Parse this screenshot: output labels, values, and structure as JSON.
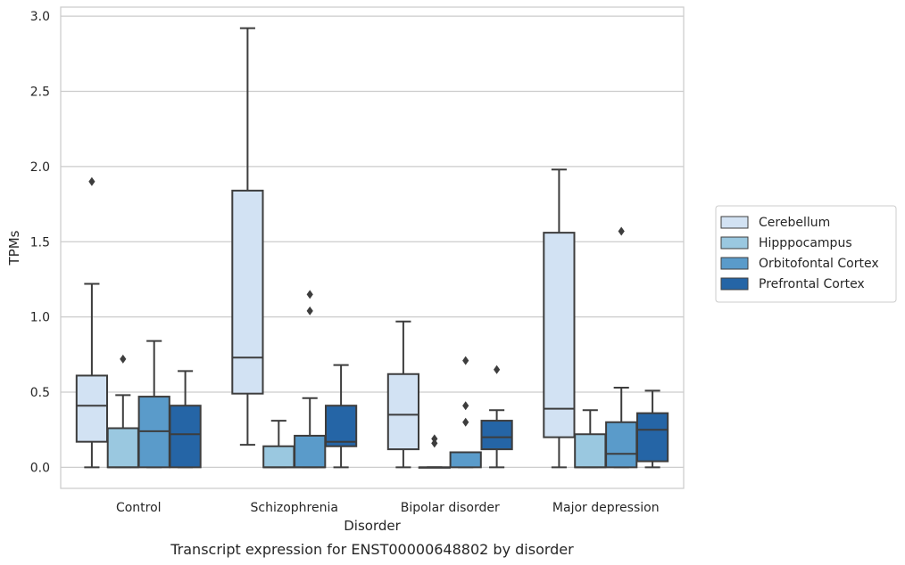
{
  "chart_data": {
    "type": "boxplot",
    "caption": "Transcript expression for ENST00000648802 by disorder",
    "xlabel": "Disorder",
    "ylabel": "TPMs",
    "ylim": [
      -0.14,
      3.06
    ],
    "yticks": [
      0.0,
      0.5,
      1.0,
      1.5,
      2.0,
      2.5,
      3.0
    ],
    "ytick_labels": [
      "0.0",
      "0.5",
      "1.0",
      "1.5",
      "2.0",
      "2.5",
      "3.0"
    ],
    "grid": "horizontal",
    "legend_position": "right",
    "categories": [
      "Control",
      "Schizophrenia",
      "Bipolar disorder",
      "Major depression"
    ],
    "series": [
      {
        "name": "Cerebellum",
        "color": "#d2e2f3",
        "boxes": [
          {
            "whislo": 0.0,
            "q1": 0.17,
            "med": 0.41,
            "q3": 0.61,
            "whishi": 1.22,
            "fliers": [
              1.9
            ]
          },
          {
            "whislo": 0.15,
            "q1": 0.49,
            "med": 0.73,
            "q3": 1.84,
            "whishi": 2.92,
            "fliers": []
          },
          {
            "whislo": 0.0,
            "q1": 0.12,
            "med": 0.35,
            "q3": 0.62,
            "whishi": 0.97,
            "fliers": []
          },
          {
            "whislo": 0.0,
            "q1": 0.2,
            "med": 0.39,
            "q3": 1.56,
            "whishi": 1.98,
            "fliers": []
          }
        ]
      },
      {
        "name": "Hipppocampus",
        "color": "#9ac8e0",
        "boxes": [
          {
            "whislo": 0.0,
            "q1": 0.0,
            "med": 0.0,
            "q3": 0.26,
            "whishi": 0.48,
            "fliers": [
              0.72
            ]
          },
          {
            "whislo": 0.0,
            "q1": 0.0,
            "med": 0.0,
            "q3": 0.14,
            "whishi": 0.31,
            "fliers": []
          },
          {
            "whislo": 0.0,
            "q1": 0.0,
            "med": 0.0,
            "q3": 0.0,
            "whishi": 0.0,
            "fliers": [
              0.16,
              0.19
            ]
          },
          {
            "whislo": 0.0,
            "q1": 0.0,
            "med": 0.0,
            "q3": 0.22,
            "whishi": 0.38,
            "fliers": []
          }
        ]
      },
      {
        "name": "Orbitofontal Cortex",
        "color": "#5a9bca",
        "boxes": [
          {
            "whislo": 0.0,
            "q1": 0.0,
            "med": 0.24,
            "q3": 0.47,
            "whishi": 0.84,
            "fliers": []
          },
          {
            "whislo": 0.0,
            "q1": 0.0,
            "med": 0.0,
            "q3": 0.21,
            "whishi": 0.46,
            "fliers": [
              1.04,
              1.15
            ]
          },
          {
            "whislo": 0.0,
            "q1": 0.0,
            "med": 0.1,
            "q3": 0.1,
            "whishi": 0.1,
            "fliers": [
              0.3,
              0.41,
              0.71
            ]
          },
          {
            "whislo": 0.0,
            "q1": 0.0,
            "med": 0.09,
            "q3": 0.3,
            "whishi": 0.53,
            "fliers": [
              1.57
            ]
          }
        ]
      },
      {
        "name": "Prefrontal Cortex",
        "color": "#2565a6",
        "boxes": [
          {
            "whislo": 0.0,
            "q1": 0.0,
            "med": 0.22,
            "q3": 0.41,
            "whishi": 0.64,
            "fliers": []
          },
          {
            "whislo": 0.0,
            "q1": 0.14,
            "med": 0.17,
            "q3": 0.41,
            "whishi": 0.68,
            "fliers": []
          },
          {
            "whislo": 0.0,
            "q1": 0.12,
            "med": 0.2,
            "q3": 0.31,
            "whishi": 0.38,
            "fliers": [
              0.65
            ]
          },
          {
            "whislo": 0.0,
            "q1": 0.04,
            "med": 0.25,
            "q3": 0.36,
            "whishi": 0.51,
            "fliers": []
          }
        ]
      }
    ]
  }
}
